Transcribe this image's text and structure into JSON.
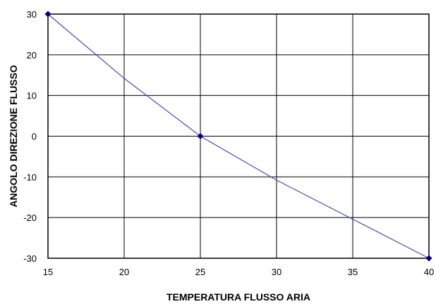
{
  "chart_data": {
    "type": "line",
    "title": "",
    "xlabel": "TEMPERATURA FLUSSO ARIA",
    "ylabel": "ANGOLO DIREZIONE FLUSSO",
    "xlim": [
      15,
      40
    ],
    "ylim": [
      -30,
      30
    ],
    "x_ticks": [
      "15",
      "20",
      "25",
      "30",
      "35",
      "40"
    ],
    "y_ticks": [
      "30",
      "20",
      "10",
      "0",
      "-10",
      "-20",
      "-30"
    ],
    "grid": true,
    "legend": "none",
    "series": [
      {
        "color": "#4a4ab0",
        "marker_color": "#000080",
        "x": [
          15,
          20,
          25,
          30,
          35,
          40
        ],
        "y": [
          30,
          14.2,
          0,
          -10.8,
          -20.4,
          -30
        ],
        "markers_at_x": [
          15,
          25,
          40
        ]
      }
    ]
  }
}
